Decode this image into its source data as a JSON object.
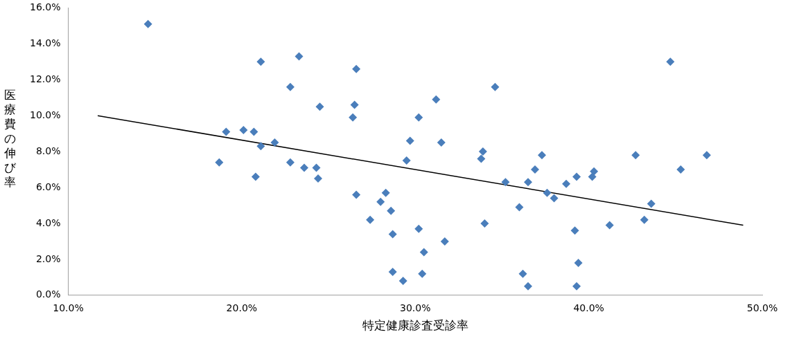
{
  "chart_data": {
    "type": "scatter",
    "xlabel": "特定健康診査受診率",
    "ylabel": "医療費の伸び率",
    "xlim": [
      10,
      50
    ],
    "ylim": [
      0,
      16
    ],
    "xticks": [
      {
        "value": 10,
        "label": "10.0%"
      },
      {
        "value": 20,
        "label": "20.0%"
      },
      {
        "value": 30,
        "label": "30.0%"
      },
      {
        "value": 40,
        "label": "40.0%"
      },
      {
        "value": 50,
        "label": "50.0%"
      }
    ],
    "yticks": [
      {
        "value": 0,
        "label": "0.0%"
      },
      {
        "value": 2,
        "label": "2.0%"
      },
      {
        "value": 4,
        "label": "4.0%"
      },
      {
        "value": 6,
        "label": "6.0%"
      },
      {
        "value": 8,
        "label": "8.0%"
      },
      {
        "value": 10,
        "label": "10.0%"
      },
      {
        "value": 12,
        "label": "12.0%"
      },
      {
        "value": 14,
        "label": "14.0%"
      },
      {
        "value": 16,
        "label": "16.0%"
      }
    ],
    "marker": "diamond",
    "grid": false,
    "legend": false,
    "series": [
      {
        "color": "#4a7ebb",
        "x": [
          14.6,
          18.7,
          19.1,
          20.1,
          20.7,
          21.1,
          20.8,
          21.1,
          21.9,
          22.8,
          22.8,
          23.3,
          23.6,
          24.3,
          24.5,
          24.4,
          26.6,
          26.5,
          26.4,
          26.6,
          27.4,
          28.0,
          28.3,
          28.6,
          28.7,
          28.7,
          29.3,
          29.7,
          29.5,
          30.2,
          30.2,
          30.5,
          30.4,
          31.2,
          31.5,
          31.7,
          33.9,
          33.8,
          34.0,
          34.6,
          35.2,
          36.0,
          36.2,
          36.5,
          36.5,
          36.9,
          37.3,
          37.6,
          38.0,
          38.7,
          39.2,
          39.3,
          39.4,
          39.3,
          40.3,
          40.2,
          41.2,
          42.7,
          43.2,
          43.6,
          44.7,
          45.3,
          46.8
        ],
        "values": [
          15.1,
          7.4,
          9.1,
          9.2,
          9.1,
          13.0,
          6.6,
          8.3,
          8.5,
          11.6,
          7.4,
          13.3,
          7.1,
          7.1,
          10.5,
          6.5,
          12.6,
          10.6,
          9.9,
          5.6,
          4.2,
          5.2,
          5.7,
          4.7,
          3.4,
          1.3,
          0.8,
          8.6,
          7.5,
          9.9,
          3.7,
          2.4,
          1.2,
          10.9,
          8.5,
          3.0,
          8.0,
          7.6,
          4.0,
          11.6,
          6.3,
          4.9,
          1.2,
          6.3,
          0.5,
          7.0,
          7.8,
          5.7,
          5.4,
          6.2,
          3.6,
          6.6,
          1.8,
          0.5,
          6.9,
          6.6,
          3.9,
          7.8,
          4.2,
          5.1,
          13.0,
          7.0,
          7.8
        ]
      },
      {
        "type": "line",
        "color": "#000000",
        "marker": "none",
        "x": [
          11.7,
          48.9
        ],
        "values": [
          10.0,
          3.9
        ]
      }
    ]
  }
}
